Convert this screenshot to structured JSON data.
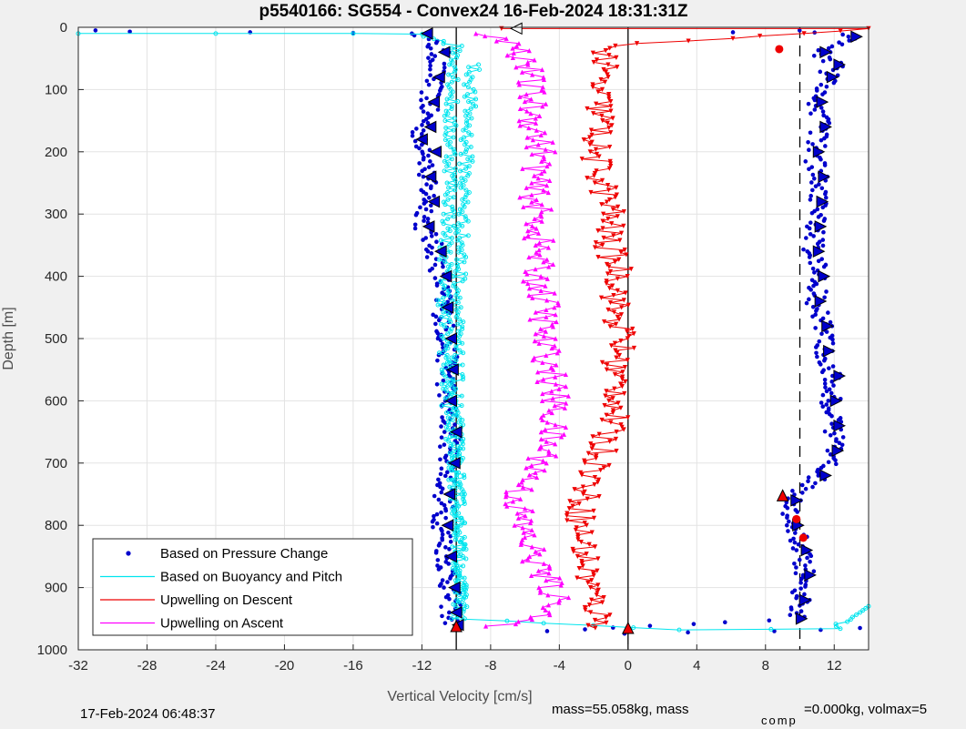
{
  "chart_data": {
    "type": "scatter",
    "title": "p5540166: SG554 - Convex24 16-Feb-2024 18:31:31Z",
    "xlabel": "Vertical Velocity [cm/s]",
    "ylabel": "Depth [m]",
    "xlim": [
      -32,
      14
    ],
    "ylim": [
      0,
      1000
    ],
    "y_reversed": true,
    "grid": true,
    "xticks": [
      -32,
      -28,
      -24,
      -20,
      -16,
      -12,
      -8,
      -4,
      0,
      4,
      8,
      12
    ],
    "yticks": [
      0,
      100,
      200,
      300,
      400,
      500,
      600,
      700,
      800,
      900,
      1000
    ],
    "legend_position": "bottom-left",
    "reference_lines": [
      {
        "x": -10,
        "style": "solid"
      },
      {
        "x": 0,
        "style": "solid"
      },
      {
        "x": 10,
        "style": "dashed"
      }
    ],
    "series": [
      {
        "name": "Based on Pressure Change",
        "color": "#0000cc",
        "marker": "dot",
        "descent": [
          [
            -31,
            5
          ],
          [
            -29,
            7
          ],
          [
            -22,
            8
          ],
          [
            -16,
            9
          ],
          [
            -12,
            10
          ],
          [
            -11.0,
            40
          ],
          [
            -11.3,
            80
          ],
          [
            -11.6,
            120
          ],
          [
            -11.8,
            160
          ],
          [
            -12.3,
            180
          ],
          [
            -11.5,
            200
          ],
          [
            -11.8,
            240
          ],
          [
            -11.6,
            280
          ],
          [
            -11.9,
            320
          ],
          [
            -11.2,
            360
          ],
          [
            -10.9,
            400
          ],
          [
            -10.8,
            450
          ],
          [
            -10.6,
            500
          ],
          [
            -10.5,
            550
          ],
          [
            -10.6,
            600
          ],
          [
            -10.3,
            650
          ],
          [
            -10.4,
            700
          ],
          [
            -10.7,
            750
          ],
          [
            -10.8,
            800
          ],
          [
            -10.6,
            850
          ],
          [
            -10.4,
            900
          ],
          [
            -10.3,
            940
          ],
          [
            -10.2,
            960
          ]
        ],
        "ascent": [
          [
            13.5,
            965
          ],
          [
            11,
            968
          ],
          [
            8,
            970
          ],
          [
            4,
            972
          ],
          [
            0,
            974
          ],
          [
            -5,
            970
          ],
          [
            9.8,
            950
          ],
          [
            10,
            920
          ],
          [
            10.3,
            880
          ],
          [
            10.1,
            840
          ],
          [
            9.6,
            800
          ],
          [
            9.5,
            760
          ],
          [
            11.2,
            720
          ],
          [
            11.9,
            680
          ],
          [
            12.0,
            640
          ],
          [
            11.8,
            600
          ],
          [
            12.0,
            560
          ],
          [
            11.4,
            520
          ],
          [
            11.3,
            480
          ],
          [
            10.9,
            440
          ],
          [
            11.1,
            400
          ],
          [
            10.8,
            360
          ],
          [
            10.9,
            320
          ],
          [
            11.0,
            280
          ],
          [
            11.1,
            240
          ],
          [
            10.8,
            200
          ],
          [
            11.2,
            160
          ],
          [
            11.0,
            120
          ],
          [
            11.6,
            80
          ],
          [
            12.0,
            60
          ],
          [
            11.2,
            40
          ],
          [
            13,
            15
          ],
          [
            10,
            5
          ],
          [
            6,
            8
          ]
        ]
      },
      {
        "name": "Based on Buoyancy and Pitch",
        "color": "#00e5ee",
        "marker": "circle",
        "descent": [
          [
            -32,
            10
          ],
          [
            -24,
            10
          ],
          [
            -16,
            10
          ],
          [
            -12,
            11
          ],
          [
            -10,
            30
          ],
          [
            -10,
            60
          ],
          [
            -10.2,
            100
          ],
          [
            -10.4,
            150
          ],
          [
            -10.3,
            200
          ],
          [
            -10.3,
            250
          ],
          [
            -10.4,
            300
          ],
          [
            -10.6,
            350
          ],
          [
            -10.6,
            400
          ],
          [
            -10.7,
            450
          ],
          [
            -10.6,
            500
          ],
          [
            -10.6,
            550
          ],
          [
            -10.5,
            600
          ],
          [
            -10.3,
            650
          ],
          [
            -10.1,
            700
          ],
          [
            -10.0,
            750
          ],
          [
            -9.9,
            800
          ],
          [
            -9.8,
            850
          ],
          [
            -9.7,
            900
          ],
          [
            -9.6,
            950
          ]
        ],
        "ascent": [
          [
            -9.0,
            60
          ],
          [
            -9.2,
            100
          ],
          [
            -9.3,
            150
          ],
          [
            -9.4,
            200
          ],
          [
            -9.5,
            250
          ],
          [
            -9.6,
            300
          ],
          [
            -9.7,
            350
          ],
          [
            -9.8,
            400
          ],
          [
            -9.9,
            450
          ],
          [
            -10.0,
            500
          ],
          [
            -10.0,
            550
          ],
          [
            -10.0,
            600
          ],
          [
            -10.0,
            650
          ],
          [
            -9.9,
            700
          ],
          [
            -9.9,
            750
          ],
          [
            -9.8,
            800
          ],
          [
            -9.8,
            850
          ],
          [
            -9.8,
            900
          ],
          [
            -9.9,
            950
          ],
          [
            3,
            968
          ],
          [
            8,
            967
          ],
          [
            12,
            966
          ],
          [
            13.5,
            940
          ],
          [
            14,
            930
          ]
        ]
      },
      {
        "name": "Upwelling on Descent",
        "color": "#ee0000",
        "marker": "triangle-down",
        "values": [
          [
            -6.5,
            2
          ],
          [
            14,
            2
          ],
          [
            -1.0,
            30
          ],
          [
            -1.5,
            60
          ],
          [
            -1.8,
            100
          ],
          [
            -1.5,
            150
          ],
          [
            -2.0,
            200
          ],
          [
            -1.5,
            250
          ],
          [
            -1.0,
            300
          ],
          [
            -1.2,
            350
          ],
          [
            -0.4,
            400
          ],
          [
            -0.8,
            450
          ],
          [
            -0.3,
            500
          ],
          [
            -0.8,
            550
          ],
          [
            -0.5,
            600
          ],
          [
            -1.2,
            650
          ],
          [
            -1.7,
            700
          ],
          [
            -2.5,
            750
          ],
          [
            -2.8,
            800
          ],
          [
            -2.5,
            850
          ],
          [
            -2.2,
            900
          ],
          [
            -1.8,
            940
          ],
          [
            -1.5,
            965
          ]
        ]
      },
      {
        "name": "Upwelling on Ascent",
        "color": "#ff00ff",
        "marker": "triangle-up",
        "values": [
          [
            -8.2,
            10
          ],
          [
            -6.5,
            30
          ],
          [
            -5.8,
            60
          ],
          [
            -5.7,
            100
          ],
          [
            -5.5,
            150
          ],
          [
            -5.0,
            200
          ],
          [
            -5.5,
            250
          ],
          [
            -5.3,
            300
          ],
          [
            -5.2,
            350
          ],
          [
            -5.3,
            400
          ],
          [
            -4.8,
            450
          ],
          [
            -5.0,
            500
          ],
          [
            -4.5,
            550
          ],
          [
            -4.3,
            600
          ],
          [
            -4.5,
            650
          ],
          [
            -5.0,
            700
          ],
          [
            -6.5,
            750
          ],
          [
            -6.2,
            800
          ],
          [
            -5.5,
            850
          ],
          [
            -4.5,
            900
          ],
          [
            -4.0,
            940
          ],
          [
            -8.0,
            962
          ]
        ]
      }
    ],
    "annotations": [
      {
        "type": "turn-marker",
        "color": "#ee0000",
        "points": [
          [
            -10,
            962
          ],
          [
            0,
            965
          ],
          [
            9,
            752
          ],
          [
            9.8,
            790
          ],
          [
            10.2,
            820
          ],
          [
            8.8,
            35
          ]
        ]
      }
    ],
    "footer_timestamp": "17-Feb-2024 06:48:37",
    "footer_mass": "mass=55.058kg, mass",
    "footer_comp_sub": "comp",
    "footer_comp": "=0.000kg, volmax=5"
  }
}
